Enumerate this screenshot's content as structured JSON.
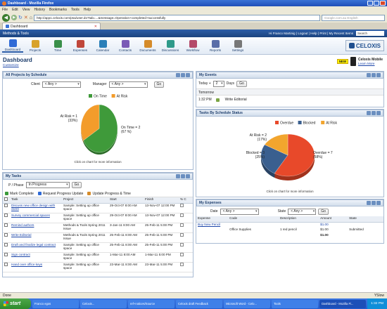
{
  "browser": {
    "title": "Dashboard - Mozilla Firefox",
    "menu": [
      "File",
      "Edit",
      "View",
      "History",
      "Bookmarks",
      "Tools",
      "Help"
    ],
    "url": "http://app1.celoxis.com/psa/user.do?tab=...&message=Operation+completed+successfully",
    "search_placeholder": "Google.com.au English",
    "tab_label": "Dashboard",
    "status_text": "Done",
    "status_right": "YSlow"
  },
  "app": {
    "crumb": "Methods & Tools",
    "user_links": "Hi Franco Martinig | Logout | Help | Print | My Recent Items",
    "search_label": "Search",
    "nav": [
      "Dashboard",
      "Projects",
      "Time",
      "Expenses",
      "Calendar",
      "Contacts",
      "Documents",
      "Discussions",
      "Workflow",
      "Reports",
      "Settings"
    ],
    "logo": "CELOXIS",
    "page_title": "Dashboard",
    "customize": "Customize",
    "mobile_new": "NEW",
    "mobile_title": "Celoxis Mobile",
    "mobile_link": "Learn More"
  },
  "projects_panel": {
    "title": "All Projects by Schedule",
    "client_label": "Client",
    "client_value": "< Any >",
    "manager_label": "Manager",
    "manager_value": "< Any >",
    "go": "Go",
    "hint": "Click on chart for more information"
  },
  "events_panel": {
    "title": "My Events",
    "today_label": "Today +",
    "days_value": "2",
    "days_label": "Days",
    "go": "Go",
    "group": "Tomorrow",
    "time": "1:32 PM",
    "event": "Write Editorial"
  },
  "status_panel": {
    "title": "Tasks By Schedule Status",
    "hint": "Click on chart for more information"
  },
  "tasks_panel": {
    "title": "My Tasks",
    "phase_label": "P / Phase",
    "phase_value": "In Progress",
    "go": "Go",
    "actions": [
      "Mark Complete",
      "Request Progress Update",
      "Update Progress & Time"
    ],
    "columns": [
      "Task",
      "Project",
      "Start",
      "Finish",
      "% C"
    ],
    "rows": [
      {
        "task": "Discuss new office design with client",
        "project": "Sample: Setting up office space",
        "start": "29-Oct-07 8:00 AM",
        "finish": "13-Nov-07 12:00 PM"
      },
      {
        "task": "Survey commercial spaces",
        "project": "Sample: Setting up office space",
        "start": "29-Oct-07 8:00 AM",
        "finish": "13-Nov-07 12:00 PM"
      },
      {
        "task": "Remind authors",
        "project": "Methods & Tools Spring 2011 Issue",
        "start": "3-Jan-11 8:00 AM",
        "finish": "25-Feb-11 5:00 PM"
      },
      {
        "task": "Write Editorial",
        "project": "Methods & Tools Spring 2011 Issue",
        "start": "25-Feb-11 8:00 AM",
        "finish": "25-Feb-11 5:00 PM"
      },
      {
        "task": "Draft and finalize legal contract",
        "project": "Sample: Setting up office space",
        "start": "25-Feb-11 8:00 AM",
        "finish": "25-Feb-11 5:00 PM"
      },
      {
        "task": "Sign contract",
        "project": "Sample: Setting up office space",
        "start": "1-Mar-11 8:00 AM",
        "finish": "1-Mar-11 5:00 PM"
      },
      {
        "task": "Hand over office keys",
        "project": "Sample: Setting up office space",
        "start": "23-Mar-11 8:00 AM",
        "finish": "23-Mar-11 5:00 PM"
      }
    ]
  },
  "expenses_panel": {
    "title": "My Expenses",
    "date_label": "Date",
    "date_value": "< Any >",
    "state_label": "State",
    "state_value": "< Any >",
    "go": "Go",
    "columns": [
      "Expense",
      "Code",
      "Description",
      "Amount",
      "State"
    ],
    "group_name": "Buy New Pencil",
    "group_amount": "$1.00",
    "row": {
      "code": "Office Supplies",
      "description": "1 red pencil",
      "amount": "$1.00",
      "state": "Submitted"
    },
    "total": "$1.00"
  },
  "taskbar": {
    "start": "start",
    "items": [
      "Franco egos",
      "Celoxis...",
      "ref+notices/Source",
      "Celoxis draft Feedback",
      "Microsoft Word - Celo...",
      "Tools",
      "Dashboard - Mozilla Fi..."
    ],
    "clock": "1:32 PM"
  },
  "chart_data": [
    {
      "type": "pie",
      "title": "All Projects by Schedule",
      "legend": [
        "On Time",
        "At Risk"
      ],
      "legend_placement": "top",
      "values": [
        2,
        1
      ],
      "percents": [
        67,
        33
      ],
      "labels": [
        "On Time = 2\n(67 %)",
        "At Risk = 1\n(33%)"
      ],
      "colors": [
        "#3f9a3a",
        "#f39c2b"
      ]
    },
    {
      "type": "pie",
      "title": "Tasks By Schedule Status",
      "legend": [
        "Overdue",
        "Blocked",
        "At Risk"
      ],
      "legend_placement": "top",
      "values": [
        7,
        3,
        2
      ],
      "percents": [
        58,
        25,
        17
      ],
      "labels": [
        "Overdue = 7\n(58%)",
        "Blocked = 3\n(25%)",
        "At Risk = 2\n(17%)"
      ],
      "colors": [
        "#e8492a",
        "#3a5f8f",
        "#f2a52e"
      ]
    }
  ]
}
